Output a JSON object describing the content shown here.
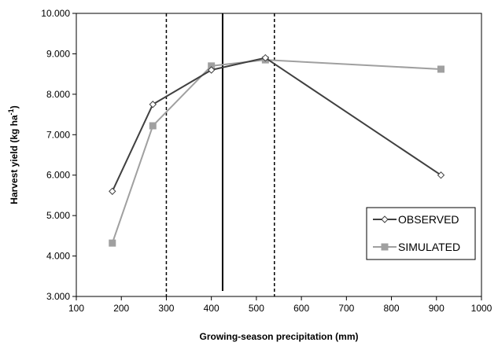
{
  "chart_data": {
    "type": "line",
    "xlabel": "Growing-season precipitation (mm)",
    "ylabel_main": "Harvest yield (kg ha",
    "ylabel_sup": "-1",
    "ylabel_close": ")",
    "xlim": [
      100,
      1000
    ],
    "ylim": [
      3000,
      10000
    ],
    "xticks": [
      100,
      200,
      300,
      400,
      500,
      600,
      700,
      800,
      900,
      1000
    ],
    "yticks": [
      3000,
      4000,
      5000,
      6000,
      7000,
      8000,
      9000,
      10000
    ],
    "ytick_labels": [
      "3.000",
      "4.000",
      "5.000",
      "6.000",
      "7.000",
      "8.000",
      "9.000",
      "10.000"
    ],
    "grid": false,
    "legend_position": "bottom-right",
    "series": [
      {
        "name": "OBSERVED",
        "color": "#404040",
        "marker": "diamond-open",
        "x": [
          180,
          270,
          400,
          520,
          910
        ],
        "y": [
          5600,
          7750,
          8600,
          8900,
          6000
        ]
      },
      {
        "name": "SIMULATED",
        "color": "#a0a0a0",
        "marker": "square-filled",
        "x": [
          180,
          270,
          400,
          520,
          910
        ],
        "y": [
          4320,
          7220,
          8700,
          8850,
          8620
        ]
      }
    ],
    "vertical_lines": [
      {
        "x": 300,
        "style": "dashed"
      },
      {
        "x": 425,
        "style": "solid"
      },
      {
        "x": 540,
        "style": "dashed"
      }
    ]
  }
}
